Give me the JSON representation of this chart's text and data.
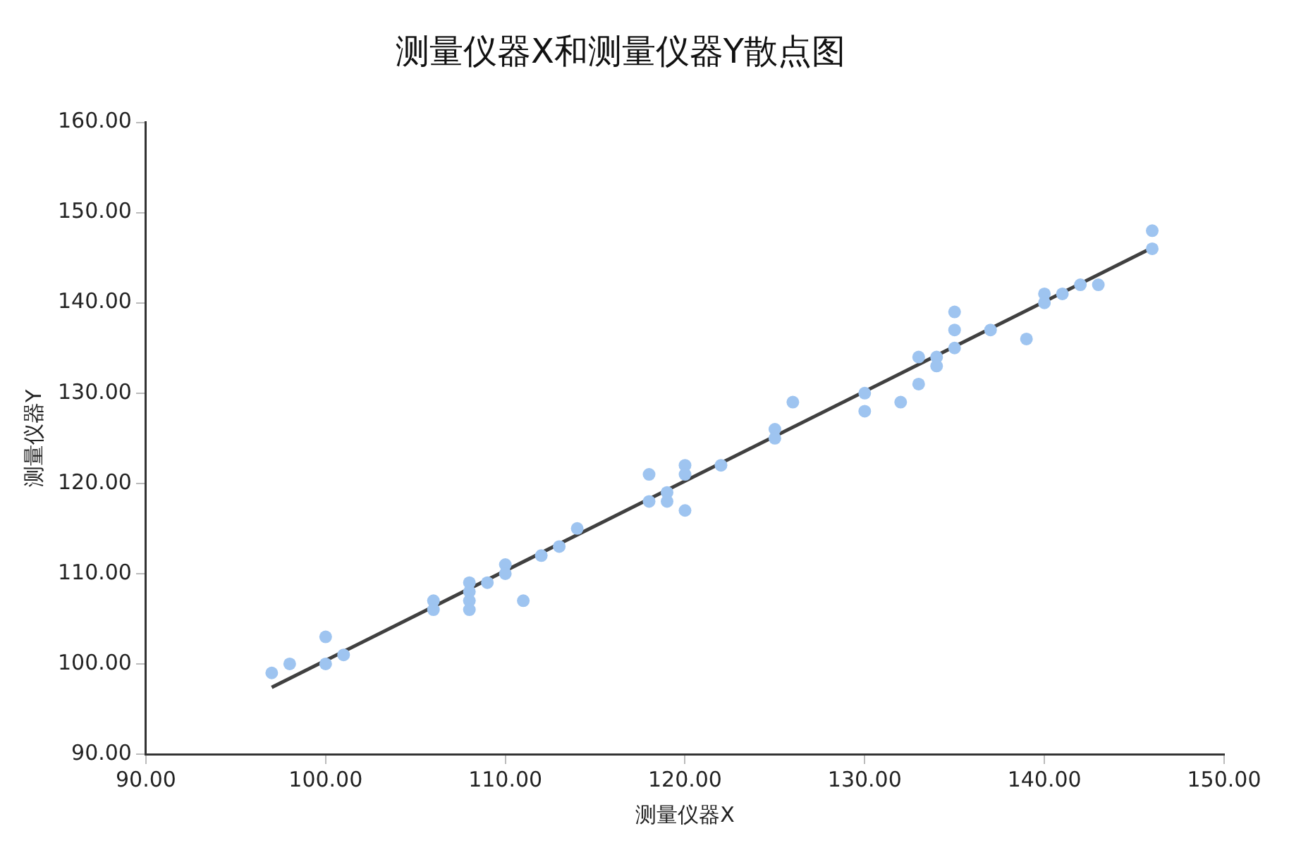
{
  "chart_data": {
    "type": "scatter",
    "title": "测量仪器X和测量仪器Y散点图",
    "xlabel": "测量仪器X",
    "ylabel": "测量仪器Y",
    "xlim": [
      90,
      150
    ],
    "xticks": [
      {
        "value": 90,
        "label": "90.00"
      },
      {
        "value": 100,
        "label": "100.00"
      },
      {
        "value": 110,
        "label": "110.00"
      },
      {
        "value": 120,
        "label": "120.00"
      },
      {
        "value": 130,
        "label": "130.00"
      },
      {
        "value": 140,
        "label": "140.00"
      },
      {
        "value": 150,
        "label": "150.00"
      }
    ],
    "ylim": [
      90,
      160
    ],
    "yticks": [
      {
        "value": 90,
        "label": "90.00"
      },
      {
        "value": 100,
        "label": "100.00"
      },
      {
        "value": 110,
        "label": "110.00"
      },
      {
        "value": 120,
        "label": "120.00"
      },
      {
        "value": 130,
        "label": "130.00"
      },
      {
        "value": 140,
        "label": "140.00"
      },
      {
        "value": 150,
        "label": "150.00"
      },
      {
        "value": 160,
        "label": "160.00"
      }
    ],
    "grid": false,
    "legend": false,
    "series": [
      {
        "marker": "circle",
        "color": "#9ec4f0",
        "x": [
          97,
          98,
          100,
          100,
          101,
          106,
          106,
          108,
          108,
          108,
          108,
          109,
          110,
          110,
          111,
          112,
          113,
          114,
          118,
          118,
          119,
          119,
          120,
          120,
          120,
          122,
          125,
          125,
          126,
          130,
          130,
          132,
          133,
          133,
          134,
          134,
          135,
          135,
          135,
          137,
          139,
          140,
          140,
          141,
          142,
          143,
          146,
          146
        ],
        "values": [
          99,
          100,
          103,
          100,
          101,
          107,
          106,
          109,
          108,
          107,
          106,
          109,
          111,
          110,
          107,
          112,
          113,
          115,
          121,
          118,
          119,
          118,
          122,
          121,
          117,
          122,
          126,
          125,
          129,
          130,
          128,
          129,
          134,
          131,
          134,
          133,
          139,
          137,
          135,
          137,
          136,
          141,
          140,
          141,
          142,
          142,
          148,
          146
        ]
      },
      {
        "type": "line",
        "marker": "none",
        "color": "#404040",
        "x": [
          97,
          146
        ],
        "values": [
          97.4,
          146.1
        ]
      }
    ]
  }
}
